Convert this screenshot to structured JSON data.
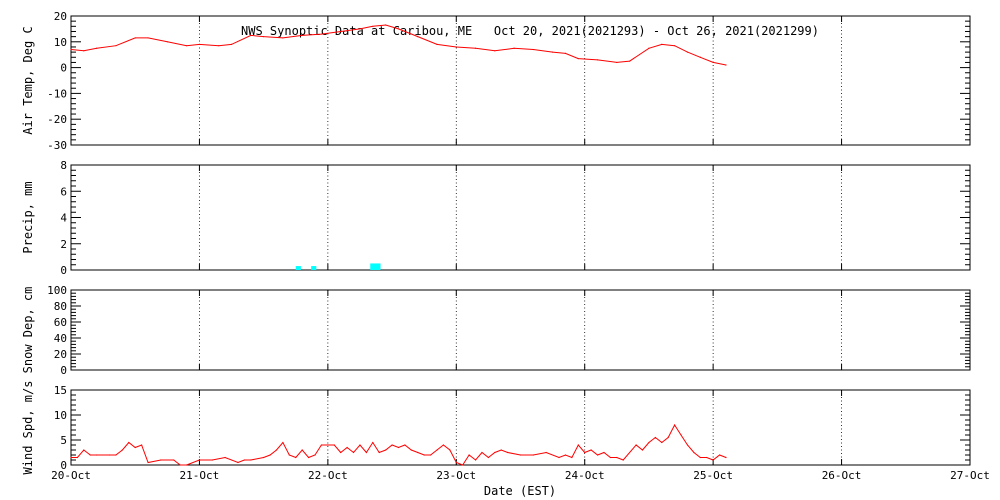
{
  "chart_data": {
    "type": "line",
    "title": "NWS Synoptic Data at Caribou, ME   Oct 20, 2021(2021293) - Oct 26, 2021(2021299)",
    "xlabel": "Date (EST)",
    "x_ticks": [
      "20-Oct",
      "21-Oct",
      "22-Oct",
      "23-Oct",
      "24-Oct",
      "25-Oct",
      "26-Oct",
      "27-Oct"
    ],
    "x_range": [
      0,
      7
    ],
    "grid": true,
    "colors": {
      "temp": "#ff0000",
      "precip": "#00ffff",
      "wind": "#ff0000"
    },
    "panels": [
      {
        "id": "temp",
        "type": "line",
        "ylabel": "Air Temp, Deg C",
        "ylim": [
          -30,
          20
        ],
        "yticks": [
          -30,
          -20,
          -10,
          0,
          10,
          20
        ],
        "ytick_labels": [
          "-30",
          "-20",
          "-10",
          "0",
          "10",
          "20"
        ],
        "x": [
          0,
          0.1,
          0.2,
          0.35,
          0.5,
          0.6,
          0.75,
          0.9,
          1.0,
          1.15,
          1.25,
          1.4,
          1.5,
          1.65,
          1.8,
          1.95,
          2.1,
          2.25,
          2.35,
          2.45,
          2.55,
          2.7,
          2.85,
          3.0,
          3.15,
          3.3,
          3.45,
          3.6,
          3.75,
          3.85,
          3.95,
          4.1,
          4.25,
          4.35,
          4.5,
          4.6,
          4.7,
          4.8,
          4.9,
          5.0,
          5.1
        ],
        "values": [
          7,
          6.5,
          7.5,
          8.5,
          11.5,
          11.5,
          10,
          8.5,
          9,
          8.5,
          9,
          12.5,
          12,
          11.5,
          12.5,
          13,
          14,
          15,
          16,
          16.5,
          15,
          12,
          9,
          8,
          7.5,
          6.5,
          7.5,
          7,
          6,
          5.5,
          3.5,
          3,
          2,
          2.5,
          7.5,
          9,
          8.5,
          6,
          4,
          2,
          1
        ]
      },
      {
        "id": "precip",
        "type": "bar",
        "ylabel": "Precip, mm",
        "ylim": [
          0,
          8
        ],
        "yticks": [
          0,
          2,
          4,
          6,
          8
        ],
        "ytick_labels": [
          "0",
          "2",
          "4",
          "6",
          "8"
        ],
        "bars": [
          {
            "x0": 1.75,
            "x1": 1.79,
            "value": 0.3
          },
          {
            "x0": 1.87,
            "x1": 1.91,
            "value": 0.3
          },
          {
            "x0": 2.33,
            "x1": 2.41,
            "value": 0.5
          }
        ]
      },
      {
        "id": "snow",
        "type": "line",
        "ylabel": "Snow Dep, cm",
        "ylim": [
          0,
          100
        ],
        "yticks": [
          0,
          20,
          40,
          60,
          80,
          100
        ],
        "ytick_labels": [
          "0",
          "20",
          "40",
          "60",
          "80",
          "100"
        ],
        "x": [],
        "values": []
      },
      {
        "id": "wind",
        "type": "line",
        "ylabel": "Wind Spd, m/s",
        "ylim": [
          0,
          15
        ],
        "yticks": [
          0,
          5,
          10,
          15
        ],
        "ytick_labels": [
          "0",
          "5",
          "10",
          "15"
        ],
        "x": [
          0,
          0.05,
          0.1,
          0.15,
          0.2,
          0.3,
          0.35,
          0.4,
          0.45,
          0.5,
          0.55,
          0.6,
          0.7,
          0.8,
          0.85,
          0.9,
          1.0,
          1.1,
          1.2,
          1.3,
          1.35,
          1.4,
          1.5,
          1.55,
          1.6,
          1.65,
          1.7,
          1.75,
          1.8,
          1.85,
          1.9,
          1.95,
          2.0,
          2.05,
          2.1,
          2.15,
          2.2,
          2.25,
          2.3,
          2.35,
          2.4,
          2.45,
          2.5,
          2.55,
          2.6,
          2.65,
          2.7,
          2.75,
          2.8,
          2.85,
          2.9,
          2.95,
          3.0,
          3.05,
          3.1,
          3.15,
          3.2,
          3.25,
          3.3,
          3.35,
          3.4,
          3.5,
          3.6,
          3.7,
          3.8,
          3.85,
          3.9,
          3.95,
          4.0,
          4.05,
          4.1,
          4.15,
          4.2,
          4.25,
          4.3,
          4.4,
          4.45,
          4.5,
          4.55,
          4.6,
          4.65,
          4.7,
          4.75,
          4.8,
          4.85,
          4.9,
          4.95,
          5.0,
          5.05,
          5.1
        ],
        "values": [
          1.5,
          1.5,
          3,
          2,
          2,
          2,
          2,
          3,
          4.5,
          3.5,
          4,
          0.5,
          1,
          1,
          0,
          0,
          1,
          1,
          1.5,
          0.5,
          1,
          1,
          1.5,
          2,
          3,
          4.5,
          2,
          1.5,
          3,
          1.5,
          2,
          4,
          4,
          4,
          2.5,
          3.5,
          2.5,
          4,
          2.5,
          4.5,
          2.5,
          3,
          4,
          3.5,
          4,
          3,
          2.5,
          2,
          2,
          3,
          4,
          3,
          0.5,
          0,
          2,
          1,
          2.5,
          1.5,
          2.5,
          3,
          2.5,
          2,
          2,
          2.5,
          1.5,
          2,
          1.5,
          4,
          2.5,
          3,
          2,
          2.5,
          1.5,
          1.5,
          1,
          4,
          3,
          4.5,
          5.5,
          4.5,
          5.5,
          8,
          6,
          4,
          2.5,
          1.5,
          1.5,
          1,
          2,
          1.5
        ]
      }
    ]
  }
}
